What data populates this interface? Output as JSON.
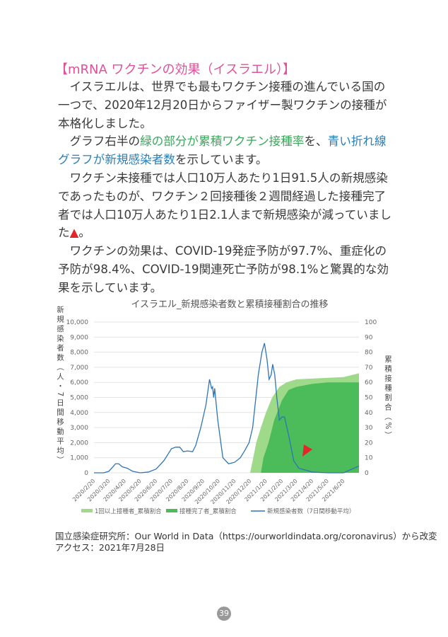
{
  "title": "【mRNA ワクチンの効果（イスラエル）】",
  "paragraphs": [
    [
      {
        "t": "イスラエルは、世界でも最もワクチン接種の進んでいる国の一つで、2020年12月20日からファイザー製ワクチンの接種が本格化しました。",
        "c": ""
      }
    ],
    [
      {
        "t": "グラフ右半の",
        "c": ""
      },
      {
        "t": "緑の部分が累積ワクチン接種率",
        "c": "green"
      },
      {
        "t": "を、",
        "c": ""
      },
      {
        "t": "青い折れ線グラフが新規感染者数",
        "c": "blue"
      },
      {
        "t": "を示しています。",
        "c": ""
      }
    ],
    [
      {
        "t": "ワクチン未接種では人口10万人あたり1日91.5人の新規感染であったものが、ワクチン２回接種後２週間経過した接種完了者では人口10万人あたり1日2.1人まで新規感染が減っていました",
        "c": ""
      },
      {
        "t": "▲",
        "c": "red"
      },
      {
        "t": "。",
        "c": ""
      }
    ],
    [
      {
        "t": "ワクチンの効果は、COVID-19発症予防が97.7%、重症化の予防が98.4%、COVID-19関連死亡予防が98.1%と驚異的な効果を示しています。",
        "c": ""
      }
    ]
  ],
  "chart_data": {
    "type": "line+area",
    "title": "イスラエル_新規感染者数と累積接種割合の推移",
    "ylabel": "新規感染者数（人・7日間移動平均）",
    "y2label": "累積接種割合（%）",
    "ylim": [
      0,
      10000
    ],
    "y2lim": [
      0,
      100
    ],
    "yticks": [
      "0",
      "1,000",
      "2,000",
      "3,000",
      "4,000",
      "5,000",
      "6,000",
      "7,000",
      "8,000",
      "9,000",
      "10,000"
    ],
    "y2ticks": [
      "0",
      "10",
      "20",
      "30",
      "40",
      "50",
      "60",
      "70",
      "80",
      "90",
      "100"
    ],
    "xticks": [
      "2020/2/20",
      "2020/3/20",
      "2020/4/20",
      "2020/5/20",
      "2020/6/20",
      "2020/7/20",
      "2020/8/20",
      "2020/9/20",
      "2020/10/20",
      "2020/11/20",
      "2020/12/20",
      "2021/1/20",
      "2021/2/20",
      "2021/3/20",
      "2021/4/20",
      "2021/5/20",
      "2021/6/20"
    ],
    "grid": true,
    "legend": "bottom",
    "series": [
      {
        "name": "1回以上接種者_累積割合",
        "axis": "right",
        "kind": "area",
        "color": "#9fd98a",
        "points": [
          [
            "2020-12-20",
            0
          ],
          [
            "2020-12-25",
            8
          ],
          [
            "2021-01-01",
            20
          ],
          [
            "2021-01-10",
            30
          ],
          [
            "2021-01-20",
            40
          ],
          [
            "2021-02-01",
            50
          ],
          [
            "2021-02-15",
            57
          ],
          [
            "2021-03-01",
            60
          ],
          [
            "2021-03-20",
            62
          ],
          [
            "2021-04-20",
            62.5
          ],
          [
            "2021-06-20",
            63.5
          ],
          [
            "2021-07-20",
            66
          ]
        ]
      },
      {
        "name": "接種完了者_累積割合",
        "axis": "right",
        "kind": "area",
        "color": "#4cbb5a",
        "points": [
          [
            "2021-01-10",
            0
          ],
          [
            "2021-01-15",
            10
          ],
          [
            "2021-01-25",
            20
          ],
          [
            "2021-02-05",
            35
          ],
          [
            "2021-02-20",
            48
          ],
          [
            "2021-03-05",
            55
          ],
          [
            "2021-03-20",
            57
          ],
          [
            "2021-04-20",
            59
          ],
          [
            "2021-05-20",
            60
          ],
          [
            "2021-07-20",
            60
          ]
        ]
      },
      {
        "name": "新規感染者数（7日間移動平均）",
        "axis": "left",
        "kind": "line",
        "color": "#2e75b6",
        "points": [
          [
            "2020-02-20",
            0
          ],
          [
            "2020-03-10",
            0
          ],
          [
            "2020-03-20",
            100
          ],
          [
            "2020-03-28",
            400
          ],
          [
            "2020-04-02",
            600
          ],
          [
            "2020-04-08",
            600
          ],
          [
            "2020-04-15",
            400
          ],
          [
            "2020-04-25",
            300
          ],
          [
            "2020-05-05",
            100
          ],
          [
            "2020-05-20",
            0
          ],
          [
            "2020-06-05",
            50
          ],
          [
            "2020-06-20",
            250
          ],
          [
            "2020-07-05",
            800
          ],
          [
            "2020-07-20",
            1600
          ],
          [
            "2020-07-28",
            1700
          ],
          [
            "2020-08-05",
            1700
          ],
          [
            "2020-08-12",
            1400
          ],
          [
            "2020-08-20",
            1450
          ],
          [
            "2020-08-30",
            1400
          ],
          [
            "2020-09-05",
            1800
          ],
          [
            "2020-09-15",
            3000
          ],
          [
            "2020-09-25",
            4500
          ],
          [
            "2020-10-02",
            6200
          ],
          [
            "2020-10-06",
            5600
          ],
          [
            "2020-10-08",
            5700
          ],
          [
            "2020-10-10",
            5000
          ],
          [
            "2020-10-12",
            5600
          ],
          [
            "2020-10-18",
            3500
          ],
          [
            "2020-10-28",
            1000
          ],
          [
            "2020-11-08",
            600
          ],
          [
            "2020-11-20",
            700
          ],
          [
            "2020-12-01",
            1000
          ],
          [
            "2020-12-10",
            1500
          ],
          [
            "2020-12-18",
            2000
          ],
          [
            "2020-12-25",
            3000
          ],
          [
            "2021-01-05",
            6500
          ],
          [
            "2021-01-12",
            8000
          ],
          [
            "2021-01-17",
            8600
          ],
          [
            "2021-01-22",
            7500
          ],
          [
            "2021-01-26",
            6200
          ],
          [
            "2021-01-30",
            6500
          ],
          [
            "2021-02-02",
            7200
          ],
          [
            "2021-02-06",
            6500
          ],
          [
            "2021-02-10",
            5000
          ],
          [
            "2021-02-15",
            3500
          ],
          [
            "2021-02-20",
            3700
          ],
          [
            "2021-02-25",
            3700
          ],
          [
            "2021-03-05",
            2500
          ],
          [
            "2021-03-15",
            800
          ],
          [
            "2021-03-25",
            300
          ],
          [
            "2021-04-10",
            150
          ],
          [
            "2021-04-20",
            50
          ],
          [
            "2021-05-20",
            0
          ],
          [
            "2021-06-20",
            0
          ],
          [
            "2021-07-20",
            450
          ]
        ]
      }
    ]
  },
  "source": "国立感染症研究所：Our World in Data（https://ourworldindata.org/coronavirus）から改変",
  "access": "アクセス：2021年7月28日",
  "page_number": "39"
}
